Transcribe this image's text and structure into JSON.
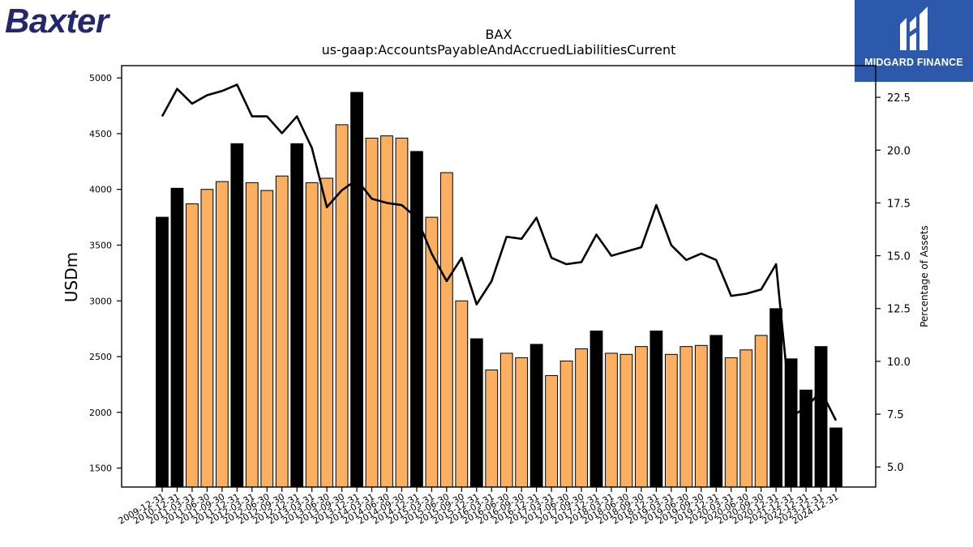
{
  "logos": {
    "left": "Baxter",
    "right": "MIDGARD FINANCE"
  },
  "chart_data": {
    "type": "bar",
    "title": "BAX",
    "subtitle": "us-gaap:AccountsPayableAndAccruedLiabilitiesCurrent",
    "ylabel": "USDm",
    "y2label": "Percentage of Assets",
    "ylim": [
      1330,
      5110
    ],
    "y2lim": [
      4.05,
      24.0
    ],
    "yticks": [
      1500,
      2000,
      2500,
      3000,
      3500,
      4000,
      4500,
      5000
    ],
    "y2ticks": [
      "5.0",
      "7.5",
      "10.0",
      "12.5",
      "15.0",
      "17.5",
      "20.0",
      "22.5"
    ],
    "categories": [
      "2009-12-31",
      "2010-12-31",
      "2011-03-31",
      "2011-06-30",
      "2011-09-30",
      "2011-12-31",
      "2012-03-31",
      "2012-06-30",
      "2012-09-30",
      "2012-12-31",
      "2013-03-31",
      "2013-06-30",
      "2013-09-30",
      "2013-12-31",
      "2014-03-31",
      "2014-06-30",
      "2014-09-30",
      "2014-12-31",
      "2015-03-31",
      "2015-06-30",
      "2015-09-30",
      "2015-12-31",
      "2016-03-31",
      "2016-06-30",
      "2016-09-30",
      "2016-12-31",
      "2017-03-31",
      "2017-06-30",
      "2017-09-30",
      "2017-12-31",
      "2018-03-31",
      "2018-06-30",
      "2018-09-30",
      "2018-12-31",
      "2019-03-31",
      "2019-06-30",
      "2019-09-30",
      "2019-12-31",
      "2020-03-31",
      "2020-06-30",
      "2020-09-30",
      "2020-12-31",
      "2021-12-31",
      "2022-12-31",
      "2023-12-31",
      "2024-12-31"
    ],
    "series": [
      {
        "values": [
          3750,
          4010,
          3870,
          4000,
          4070,
          4410,
          4060,
          3990,
          4120,
          4410,
          4060,
          4100,
          4580,
          4870,
          4460,
          4480,
          4460,
          4340,
          3750,
          4150,
          3000,
          2660,
          2380,
          2530,
          2490,
          2610,
          2330,
          2460,
          2570,
          2730,
          2530,
          2520,
          2590,
          2730,
          2520,
          2590,
          2600,
          2690,
          2490,
          2560,
          2690,
          2930,
          2480,
          2200,
          2590,
          1860
        ],
        "annual": [
          true,
          true,
          false,
          false,
          false,
          true,
          false,
          false,
          false,
          true,
          false,
          false,
          false,
          true,
          false,
          false,
          false,
          true,
          false,
          false,
          false,
          true,
          false,
          false,
          false,
          true,
          false,
          false,
          false,
          true,
          false,
          false,
          false,
          true,
          false,
          false,
          false,
          true,
          false,
          false,
          false,
          true,
          true,
          true,
          true,
          true
        ]
      },
      {
        "values": [
          21.6,
          22.9,
          22.2,
          22.6,
          22.8,
          23.1,
          21.6,
          21.6,
          20.8,
          21.6,
          20.1,
          17.3,
          18.1,
          18.6,
          17.7,
          17.5,
          17.4,
          16.8,
          15.1,
          13.8,
          14.9,
          12.7,
          13.8,
          15.9,
          15.8,
          16.8,
          14.9,
          14.6,
          14.7,
          16.0,
          15.0,
          15.2,
          15.4,
          17.4,
          15.5,
          14.8,
          15.1,
          14.8,
          13.1,
          13.2,
          13.4,
          14.6,
          7.4,
          7.8,
          8.6,
          7.2
        ]
      }
    ],
    "colors": {
      "annual": "#000000",
      "quarterly": "#fbb061",
      "line": "#000000"
    },
    "grid": false
  }
}
